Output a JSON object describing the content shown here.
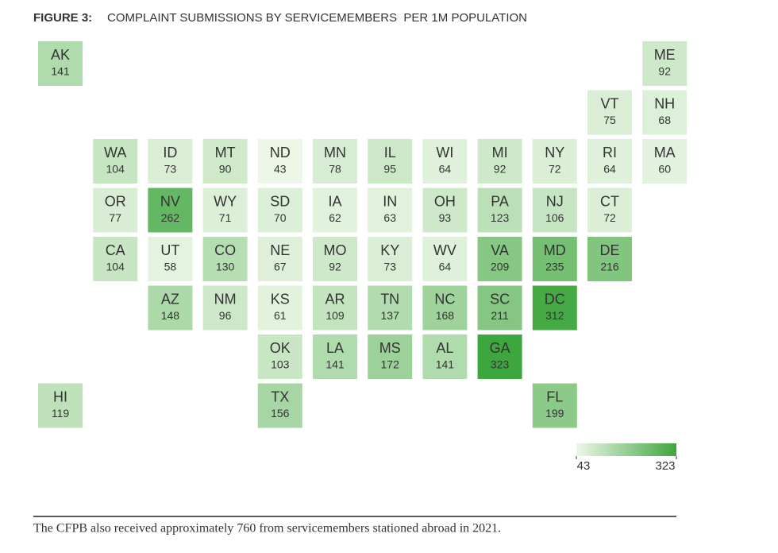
{
  "chart_data": {
    "type": "tilemap",
    "title_label": "FIGURE 3:",
    "title": "COMPLAINT SUBMISSIONS BY SERVICEMEMBERS  PER 1M POPULATION",
    "categories": [
      "AK",
      "ME",
      "VT",
      "NH",
      "WA",
      "ID",
      "MT",
      "ND",
      "MN",
      "IL",
      "WI",
      "MI",
      "NY",
      "RI",
      "MA",
      "OR",
      "NV",
      "WY",
      "SD",
      "IA",
      "IN",
      "OH",
      "PA",
      "NJ",
      "CT",
      "CA",
      "UT",
      "CO",
      "NE",
      "MO",
      "KY",
      "WV",
      "VA",
      "MD",
      "DE",
      "AZ",
      "NM",
      "KS",
      "AR",
      "TN",
      "NC",
      "SC",
      "DC",
      "OK",
      "LA",
      "MS",
      "AL",
      "GA",
      "HI",
      "TX",
      "FL"
    ],
    "values": [
      141,
      92,
      75,
      68,
      104,
      73,
      90,
      43,
      78,
      95,
      64,
      92,
      72,
      64,
      60,
      77,
      262,
      71,
      70,
      62,
      63,
      93,
      123,
      106,
      72,
      104,
      58,
      130,
      67,
      92,
      73,
      64,
      209,
      235,
      216,
      148,
      96,
      61,
      109,
      137,
      168,
      211,
      312,
      103,
      141,
      172,
      141,
      323,
      119,
      156,
      199
    ],
    "clim": [
      43,
      323
    ],
    "colors": [
      "#edf7e8",
      "#3ea63e"
    ],
    "note": "The CFPB also received approximately 760 from servicemembers stationed abroad in 2021."
  }
}
